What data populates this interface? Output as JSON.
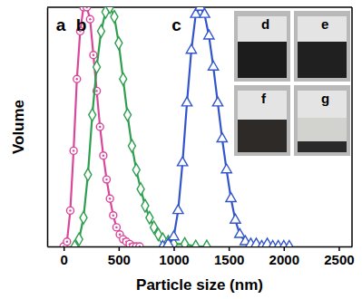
{
  "chart_data": {
    "type": "line",
    "x_label": "Particle size (nm)",
    "y_label": "Volume",
    "xlim": [
      -150,
      2620
    ],
    "xticks": [
      0,
      500,
      1000,
      1500,
      2000,
      2500
    ],
    "ylim": [
      0,
      1
    ],
    "tick_labels": "x",
    "annotations": [
      "d",
      "e",
      "f",
      "g"
    ],
    "series": [
      {
        "name": "a",
        "color": "#d9479a",
        "marker": "circle-dot",
        "x": [
          0,
          30,
          60,
          90,
          120,
          150,
          180,
          210,
          240,
          270,
          300,
          330,
          360,
          390,
          420,
          450,
          480,
          510,
          540,
          570,
          600,
          630,
          660,
          690
        ],
        "values": [
          0,
          0.02,
          0.15,
          0.4,
          0.7,
          0.9,
          1.0,
          1.0,
          0.95,
          0.8,
          0.65,
          0.5,
          0.38,
          0.28,
          0.2,
          0.13,
          0.08,
          0.05,
          0.03,
          0.02,
          0.01,
          0,
          0,
          0
        ]
      },
      {
        "name": "b",
        "color": "#2e9e4f",
        "marker": "diamond",
        "x": [
          100,
          140,
          180,
          220,
          260,
          300,
          340,
          380,
          420,
          460,
          500,
          540,
          580,
          620,
          660,
          700,
          740,
          780,
          820,
          860,
          900,
          950,
          1000,
          1100,
          1200,
          1300
        ],
        "values": [
          0,
          0.03,
          0.12,
          0.3,
          0.55,
          0.75,
          0.9,
          0.98,
          1.0,
          0.96,
          0.85,
          0.7,
          0.55,
          0.42,
          0.32,
          0.24,
          0.17,
          0.12,
          0.08,
          0.05,
          0.03,
          0.02,
          0.01,
          0.01,
          0,
          0
        ]
      },
      {
        "name": "c",
        "color": "#3355cc",
        "marker": "triangle",
        "x": [
          900,
          950,
          1000,
          1040,
          1080,
          1120,
          1160,
          1200,
          1240,
          1280,
          1320,
          1360,
          1400,
          1440,
          1480,
          1520,
          1560,
          1600,
          1650,
          1700,
          1750,
          1800,
          1850,
          1900,
          1950,
          2000,
          2050
        ],
        "values": [
          0,
          0.01,
          0.04,
          0.15,
          0.35,
          0.6,
          0.82,
          0.97,
          1.0,
          0.97,
          0.88,
          0.75,
          0.6,
          0.45,
          0.32,
          0.2,
          0.11,
          0.05,
          0.02,
          0.01,
          0.01,
          0,
          0.01,
          0,
          0,
          0,
          0
        ]
      }
    ]
  }
}
